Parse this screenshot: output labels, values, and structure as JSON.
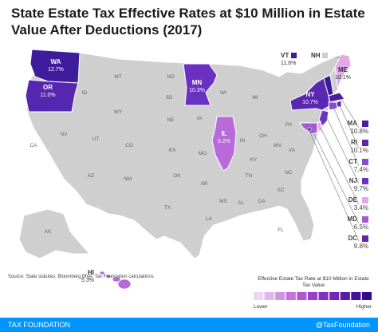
{
  "title": "State Estate Tax Effective Rates at $10 Million in Estate Value After Deductions (2017)",
  "source": "Source: State statutes; Bloomberg BNA; Tax Foundation calculations.",
  "footer": {
    "left": "TAX FOUNDATION",
    "right": "@TaxFoundation"
  },
  "legend": {
    "title": "Effective Estate Tax Rate at $10 Million in Estate Tax Value",
    "low": "Lower",
    "high": "Higher",
    "colors": [
      "#efd7f4",
      "#e0b6ec",
      "#d194e4",
      "#c273dc",
      "#b156d4",
      "#9b3fcb",
      "#8530c1",
      "#7025b6",
      "#5b1ba9",
      "#46129c",
      "#320a8e"
    ]
  },
  "colors": {
    "no_tax": "#cfcfcf",
    "border": "#ffffff",
    "footer": "#0094ff"
  },
  "states": {
    "WA": {
      "name": "WA",
      "rate": "12.7%",
      "color": "#3f1c9c"
    },
    "OR": {
      "name": "OR",
      "rate": "11.0%",
      "color": "#5527b0"
    },
    "MN": {
      "name": "MN",
      "rate": "10.3%",
      "color": "#6a30c0"
    },
    "IL": {
      "name": "IL",
      "rate": "5.2%",
      "color": "#b76ad9"
    },
    "NY": {
      "name": "NY",
      "rate": "10.7%",
      "color": "#5a27b0"
    },
    "HI": {
      "name": "HI",
      "rate": "5.3%",
      "color": "#b76ad9"
    },
    "VT": {
      "name": "VT",
      "rate": "11.6%",
      "color": "#3a1a96"
    },
    "NH": {
      "name": "NH",
      "color": "#cfcfcf"
    },
    "ME": {
      "name": "ME",
      "rate": "10.1%",
      "color": "#e3a9ea"
    }
  },
  "side_labels": [
    {
      "name": "MA",
      "rate": "10.8%",
      "color": "#4a2099"
    },
    {
      "name": "RI",
      "rate": "10.1%",
      "color": "#5a27b0"
    },
    {
      "name": "CT",
      "rate": "7.4%",
      "color": "#8b4cc9"
    },
    {
      "name": "NJ",
      "rate": "9.7%",
      "color": "#6d33bf"
    },
    {
      "name": "DE",
      "rate": "3.4%",
      "color": "#e3a9ea"
    },
    {
      "name": "MD",
      "rate": "6.5%",
      "color": "#a15cd1"
    },
    {
      "name": "DC",
      "rate": "9.8%",
      "color": "#5a27b0"
    }
  ],
  "gray_labels": [
    "MT",
    "ND",
    "ID",
    "SD",
    "WY",
    "NE",
    "NV",
    "UT",
    "CO",
    "CA",
    "KS",
    "MO",
    "AZ",
    "NM",
    "OK",
    "TX",
    "IA",
    "WI",
    "MI",
    "IN",
    "OH",
    "KY",
    "TN",
    "AR",
    "MS",
    "AL",
    "GA",
    "SC",
    "NC",
    "VA",
    "WV",
    "PA",
    "LA",
    "FL",
    "AK"
  ]
}
